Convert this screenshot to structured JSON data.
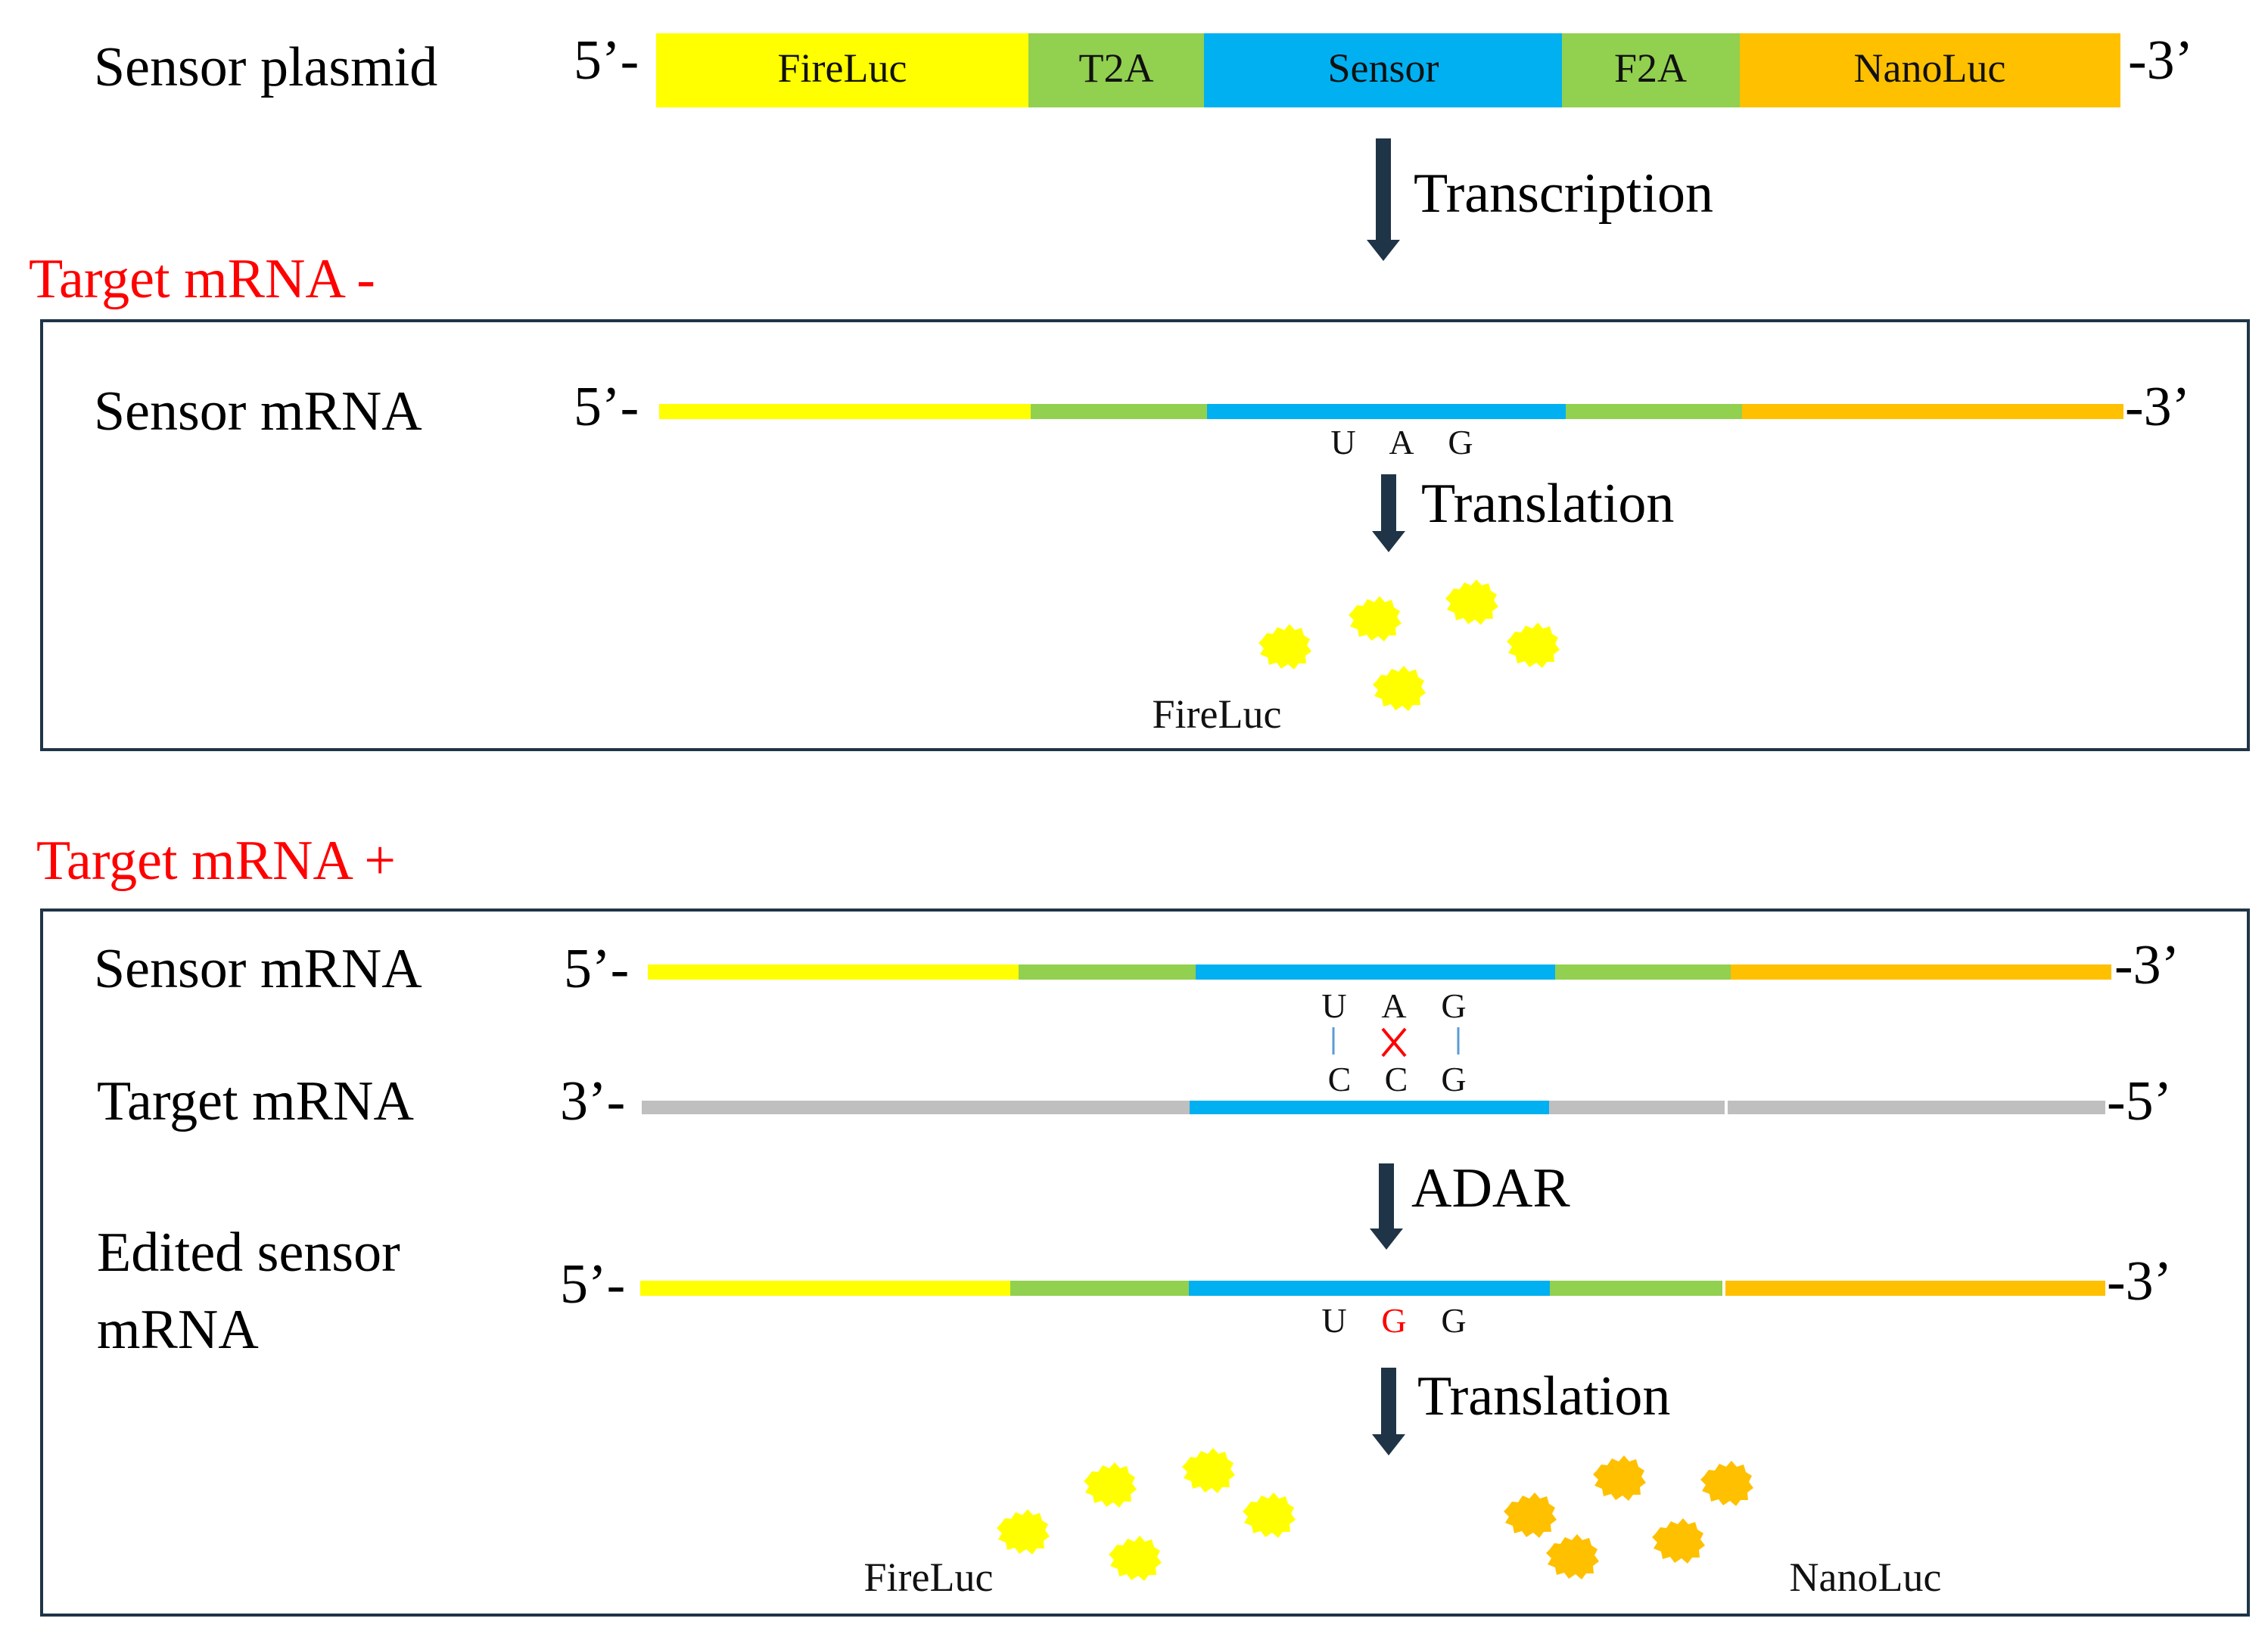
{
  "colors": {
    "fireluc": "#ffff00",
    "t2a": "#92d050",
    "sensor": "#00b0f0",
    "f2a": "#92d050",
    "nanoluc": "#ffc000",
    "target_gray": "#bfbfbf",
    "arrow": "#1f3447",
    "box": "#1f3447",
    "highlight": "#ff0000",
    "pair_line": "#5b9bd5"
  },
  "plasmid": {
    "label": "Sensor plasmid",
    "five_prime": "5’-",
    "three_prime": "-3’",
    "segments": [
      {
        "name": "FireLuc",
        "color": "#ffff00"
      },
      {
        "name": "T2A",
        "color": "#92d050"
      },
      {
        "name": "Sensor",
        "color": "#00b0f0"
      },
      {
        "name": "F2A",
        "color": "#92d050"
      },
      {
        "name": "NanoLuc",
        "color": "#ffc000"
      }
    ]
  },
  "transcription_label": "Transcription",
  "panel_minus": {
    "title": "Target mRNA -",
    "mrna_label": "Sensor mRNA",
    "five_prime": "5’-",
    "three_prime": "-3’",
    "codon": [
      "U",
      "A",
      "G"
    ],
    "translation_label": "Translation",
    "product_label": "FireLuc"
  },
  "panel_plus": {
    "title": "Target mRNA +",
    "sensor_label": "Sensor mRNA",
    "sensor_five": "5’-",
    "sensor_three": "-3’",
    "sensor_codon": [
      "U",
      "A",
      "G"
    ],
    "target_label": "Target mRNA",
    "target_three": "3’-",
    "target_five": "-5’",
    "target_codon": [
      "C",
      "C",
      "G"
    ],
    "adar_label": "ADAR",
    "edited_label_line1": "Edited sensor",
    "edited_label_line2": "mRNA",
    "edited_five": "5’-",
    "edited_three": "-3’",
    "edited_codon": [
      "U",
      "G",
      "G"
    ],
    "translation_label": "Translation",
    "product_fireluc": "FireLuc",
    "product_nanoluc": "NanoLuc"
  }
}
